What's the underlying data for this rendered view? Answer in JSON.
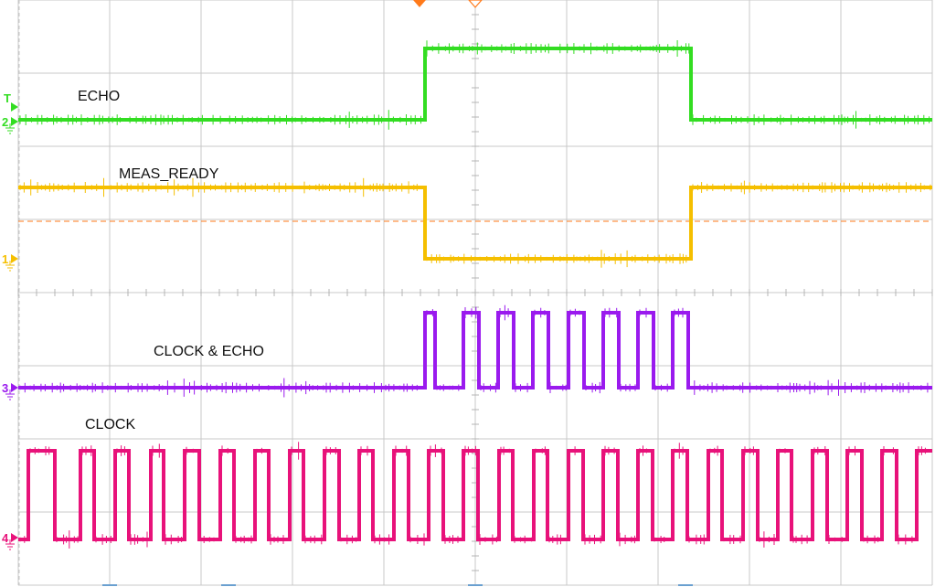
{
  "chart_data": {
    "type": "line",
    "title": "",
    "xlabel": "",
    "ylabel": "",
    "grid": true,
    "x_divisions": 10,
    "y_divisions": 8,
    "trigger_marker": "T",
    "channels": [
      {
        "name": "ECHO",
        "channel": "2",
        "color": "#33dd22",
        "low_level": 0,
        "high_level": 1,
        "edges": [
          4.45,
          7.36
        ],
        "initial_state": 0
      },
      {
        "name": "MEAS_READY",
        "channel": "1",
        "color": "#f5bf00",
        "low_level": 0,
        "high_level": 1,
        "edges": [
          4.45,
          7.36
        ],
        "initial_state": 1,
        "threshold_line": true
      },
      {
        "name": "CLOCK & ECHO",
        "channel": "3",
        "color": "#9a1aee",
        "low_level": 0,
        "high_level": 1,
        "edges": [
          4.45,
          4.56,
          4.87,
          5.04,
          5.25,
          5.42,
          5.63,
          5.8,
          6.02,
          6.19,
          6.4,
          6.57,
          6.78,
          6.95,
          7.16,
          7.33
        ],
        "initial_state": 0
      },
      {
        "name": "CLOCK",
        "channel": "4",
        "color": "#e8127a",
        "low_level": 0,
        "high_level": 1,
        "edges": [
          0.11,
          0.4,
          0.68,
          0.83,
          1.06,
          1.21,
          1.45,
          1.59,
          1.82,
          1.98,
          2.21,
          2.36,
          2.59,
          2.74,
          2.97,
          3.12,
          3.35,
          3.51,
          3.73,
          3.88,
          4.11,
          4.27,
          4.49,
          4.65,
          4.87,
          5.03,
          5.26,
          5.41,
          5.64,
          5.79,
          6.02,
          6.18,
          6.4,
          6.56,
          6.78,
          6.94,
          7.16,
          7.32,
          7.55,
          7.7,
          7.93,
          8.09,
          8.31,
          8.46,
          8.69,
          8.85,
          9.07,
          9.23,
          9.45,
          9.61,
          9.83
        ],
        "initial_state": 0
      }
    ]
  }
}
